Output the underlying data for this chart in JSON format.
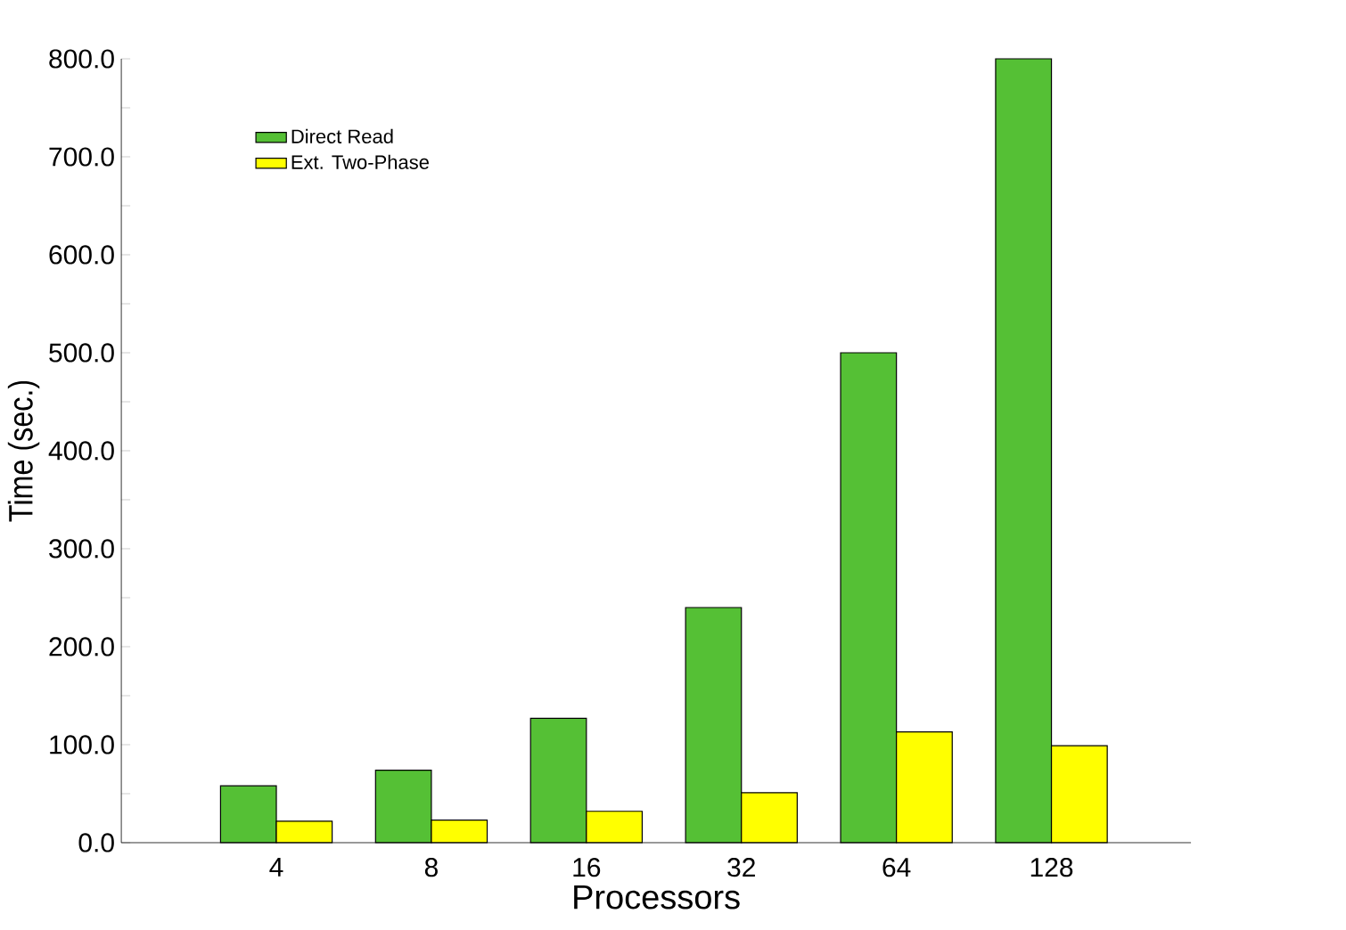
{
  "chart_data": {
    "type": "bar",
    "xlabel": "Processors",
    "ylabel": "Time (sec.)",
    "categories": [
      "4",
      "8",
      "16",
      "32",
      "64",
      "128"
    ],
    "series": [
      {
        "name": "Direct Read",
        "color": "#55c035",
        "values": [
          58,
          74,
          127,
          240,
          500,
          800
        ]
      },
      {
        "name": "Ext. Two-Phase",
        "color": "#ffff00",
        "values": [
          22,
          23,
          32,
          51,
          113,
          99
        ]
      }
    ],
    "ylim": [
      0,
      800
    ],
    "yticks": [
      {
        "value": 0,
        "label": "0.0"
      },
      {
        "value": 50,
        "label": null
      },
      {
        "value": 100,
        "label": "100.0"
      },
      {
        "value": 150,
        "label": null
      },
      {
        "value": 200,
        "label": "200.0"
      },
      {
        "value": 250,
        "label": null
      },
      {
        "value": 300,
        "label": "300.0"
      },
      {
        "value": 350,
        "label": null
      },
      {
        "value": 400,
        "label": "400.0"
      },
      {
        "value": 450,
        "label": null
      },
      {
        "value": 500,
        "label": "500.0"
      },
      {
        "value": 550,
        "label": null
      },
      {
        "value": 600,
        "label": "600.0"
      },
      {
        "value": 650,
        "label": null
      },
      {
        "value": 700,
        "label": "700.0"
      },
      {
        "value": 750,
        "label": null
      },
      {
        "value": 800,
        "label": "800.0"
      }
    ],
    "legend": "top left",
    "grid": false
  }
}
